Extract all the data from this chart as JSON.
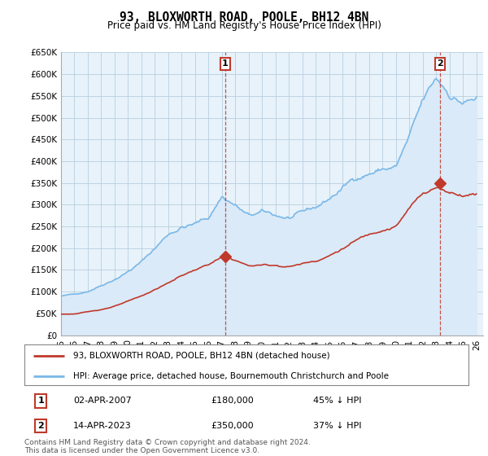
{
  "title": "93, BLOXWORTH ROAD, POOLE, BH12 4BN",
  "subtitle": "Price paid vs. HM Land Registry's House Price Index (HPI)",
  "ylabel_max": 650000,
  "yticks": [
    0,
    50000,
    100000,
    150000,
    200000,
    250000,
    300000,
    350000,
    400000,
    450000,
    500000,
    550000,
    600000,
    650000
  ],
  "ytick_labels": [
    "£0",
    "£50K",
    "£100K",
    "£150K",
    "£200K",
    "£250K",
    "£300K",
    "£350K",
    "£400K",
    "£450K",
    "£500K",
    "£550K",
    "£600K",
    "£650K"
  ],
  "xmin": 1995.0,
  "xmax": 2026.5,
  "xtick_years": [
    1995,
    1996,
    1997,
    1998,
    1999,
    2000,
    2001,
    2002,
    2003,
    2004,
    2005,
    2006,
    2007,
    2008,
    2009,
    2010,
    2011,
    2012,
    2013,
    2014,
    2015,
    2016,
    2017,
    2018,
    2019,
    2020,
    2021,
    2022,
    2023,
    2024,
    2025,
    2026
  ],
  "hpi_color": "#7ab8e8",
  "hpi_fill_color": "#daeaf8",
  "property_color": "#c0392b",
  "sale1_x": 2007.25,
  "sale1_y": 180000,
  "sale2_x": 2023.29,
  "sale2_y": 350000,
  "legend_label1": "93, BLOXWORTH ROAD, POOLE, BH12 4BN (detached house)",
  "legend_label2": "HPI: Average price, detached house, Bournemouth Christchurch and Poole",
  "table_row1_num": "1",
  "table_row1_date": "02-APR-2007",
  "table_row1_price": "£180,000",
  "table_row1_hpi": "45% ↓ HPI",
  "table_row2_num": "2",
  "table_row2_date": "14-APR-2023",
  "table_row2_price": "£350,000",
  "table_row2_hpi": "37% ↓ HPI",
  "footnote": "Contains HM Land Registry data © Crown copyright and database right 2024.\nThis data is licensed under the Open Government Licence v3.0.",
  "background_color": "#ffffff",
  "grid_color": "#b8cfe0",
  "chart_bg_color": "#e8f2fa"
}
